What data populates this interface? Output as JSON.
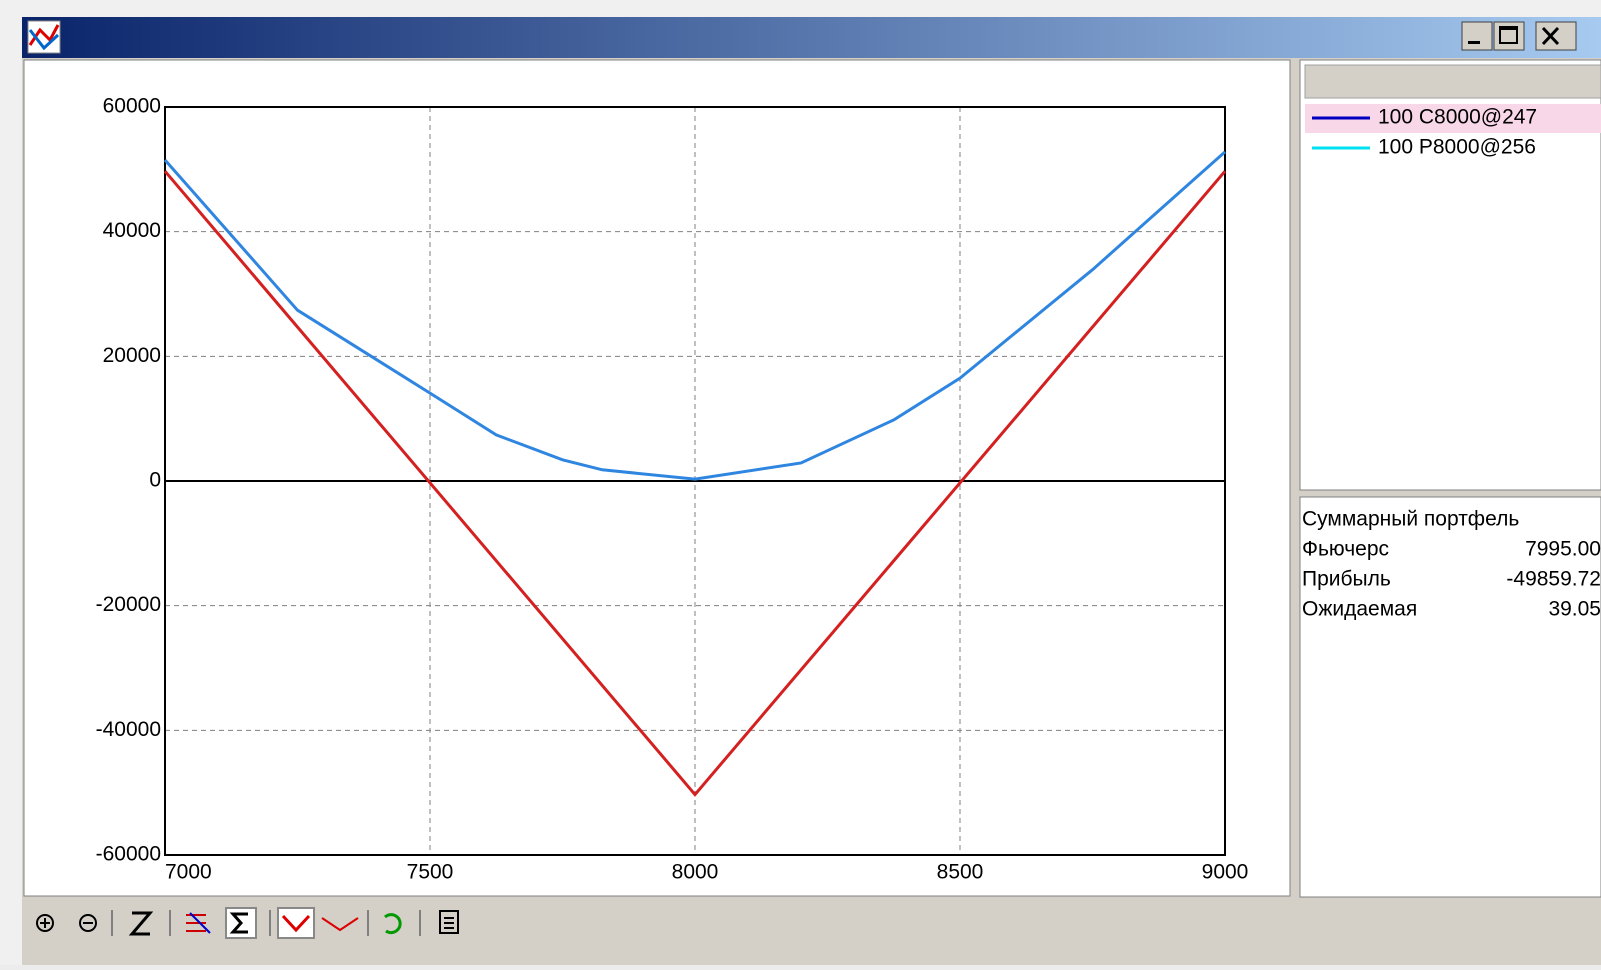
{
  "chart_data": {
    "type": "line",
    "xlim": [
      7000,
      9000
    ],
    "xticks": [
      7000,
      7500,
      8000,
      8500,
      9000
    ],
    "ylim": [
      -60000,
      60000
    ],
    "yticks": [
      -60000,
      -40000,
      -20000,
      0,
      20000,
      40000,
      60000
    ],
    "grid": true,
    "series": [
      {
        "color": "#2f86e0",
        "x": [
          7000,
          7250,
          7500,
          7625,
          7750,
          7825,
          8000,
          8200,
          8375,
          8500,
          8750,
          9000
        ],
        "values": [
          51500,
          27400,
          14100,
          7400,
          3400,
          1800,
          300,
          2900,
          9800,
          16500,
          33900,
          52800
        ]
      },
      {
        "color": "#d42020",
        "x": [
          7000,
          8000,
          9000
        ],
        "values": [
          49700,
          -50300,
          49700
        ]
      }
    ]
  },
  "legend_panel": {
    "items": [
      {
        "name": "100 C8000@247",
        "color": "#0000c0"
      },
      {
        "name": "100 P8000@256",
        "color": "#00e0f0"
      }
    ]
  },
  "summary": {
    "title": "Суммарный портфель",
    "rows": [
      [
        "Фьючерс",
        "7995.00"
      ],
      [
        "Прибыль",
        "-49859.72"
      ],
      [
        "Ожидаемая",
        "39.05"
      ]
    ]
  }
}
